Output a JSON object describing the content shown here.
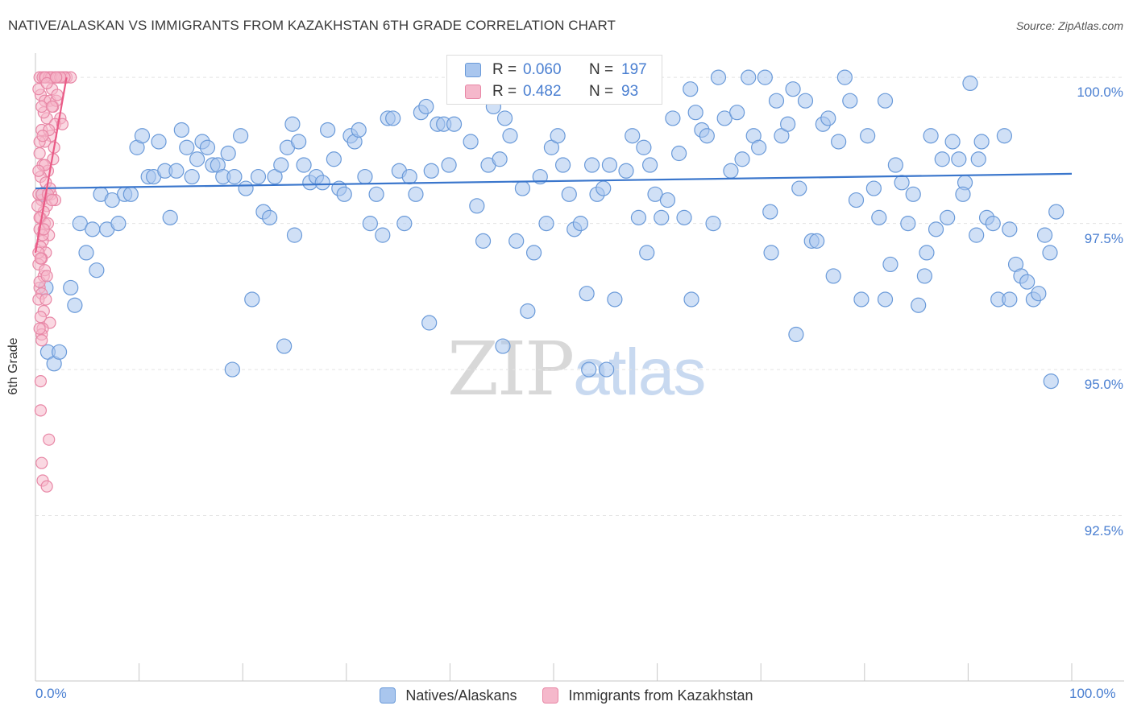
{
  "title": "NATIVE/ALASKAN VS IMMIGRANTS FROM KAZAKHSTAN 6TH GRADE CORRELATION CHART",
  "source": "Source: ZipAtlas.com",
  "watermark": {
    "zip": "ZIP",
    "atlas": "atlas"
  },
  "legend_box": {
    "rows": [
      {
        "r_label": "R =",
        "r_value": "0.060",
        "n_label": "N =",
        "n_value": "197"
      },
      {
        "r_label": "R =",
        "r_value": "0.482",
        "n_label": "N =",
        "n_value": "93"
      }
    ]
  },
  "colors": {
    "blue_fill": "#a9c6ee",
    "blue_stroke": "#6a9ad9",
    "blue_line": "#3a76cc",
    "blue_text": "#4a7fd1",
    "pink_fill": "#f5b8cb",
    "pink_stroke": "#e887a6",
    "pink_line": "#ea5a86",
    "grid": "#e4e4e4"
  },
  "chart_data": {
    "type": "scatter",
    "title": "NATIVE/ALASKAN VS IMMIGRANTS FROM KAZAKHSTAN 6TH GRADE CORRELATION CHART",
    "xlabel": "",
    "ylabel": "6th Grade",
    "x_tick_labels": [
      "0.0%",
      "100.0%"
    ],
    "y_tick_labels": [
      "100.0%",
      "97.5%",
      "95.0%",
      "92.5%"
    ],
    "y_ticks": [
      100.0,
      97.5,
      95.0,
      92.5
    ],
    "xlim": [
      0,
      100
    ],
    "ylim": [
      90.0,
      100.25
    ],
    "grid": true,
    "legend_position": "bottom-center",
    "series": [
      {
        "name": "Natives/Alaskans",
        "color": "#a9c6ee",
        "r": 0.06,
        "n": 197,
        "trend": {
          "x": [
            0,
            100
          ],
          "y": [
            98.1,
            98.35
          ]
        },
        "points": [
          [
            0.8,
            98.0
          ],
          [
            1.2,
            95.3
          ],
          [
            1.8,
            95.1
          ],
          [
            2.3,
            95.3
          ],
          [
            1.0,
            96.4
          ],
          [
            3.4,
            96.4
          ],
          [
            3.8,
            96.1
          ],
          [
            4.3,
            97.5
          ],
          [
            4.9,
            97.0
          ],
          [
            5.5,
            97.4
          ],
          [
            5.9,
            96.7
          ],
          [
            6.3,
            98.0
          ],
          [
            6.9,
            97.4
          ],
          [
            7.4,
            97.9
          ],
          [
            8.0,
            97.5
          ],
          [
            8.6,
            98.0
          ],
          [
            9.2,
            98.0
          ],
          [
            9.8,
            98.8
          ],
          [
            10.3,
            99.0
          ],
          [
            10.9,
            98.3
          ],
          [
            11.4,
            98.3
          ],
          [
            11.9,
            98.9
          ],
          [
            12.5,
            98.4
          ],
          [
            13.0,
            97.6
          ],
          [
            13.6,
            98.4
          ],
          [
            14.1,
            99.1
          ],
          [
            14.6,
            98.8
          ],
          [
            15.1,
            98.3
          ],
          [
            15.6,
            98.6
          ],
          [
            16.1,
            98.9
          ],
          [
            16.6,
            98.8
          ],
          [
            17.1,
            98.5
          ],
          [
            17.6,
            98.5
          ],
          [
            18.1,
            98.3
          ],
          [
            18.6,
            98.7
          ],
          [
            19.2,
            98.3
          ],
          [
            19.8,
            99.0
          ],
          [
            20.3,
            98.1
          ],
          [
            20.9,
            96.2
          ],
          [
            21.5,
            98.3
          ],
          [
            22.0,
            97.7
          ],
          [
            22.6,
            97.6
          ],
          [
            23.1,
            98.3
          ],
          [
            23.7,
            98.5
          ],
          [
            24.3,
            98.8
          ],
          [
            24.8,
            99.2
          ],
          [
            25.4,
            98.9
          ],
          [
            25.9,
            98.5
          ],
          [
            26.5,
            98.2
          ],
          [
            27.1,
            98.3
          ],
          [
            27.7,
            98.2
          ],
          [
            28.2,
            99.1
          ],
          [
            28.8,
            98.6
          ],
          [
            29.3,
            98.1
          ],
          [
            29.8,
            98.0
          ],
          [
            30.4,
            99.0
          ],
          [
            30.8,
            98.9
          ],
          [
            31.2,
            99.1
          ],
          [
            31.8,
            98.3
          ],
          [
            32.3,
            97.5
          ],
          [
            32.9,
            98.0
          ],
          [
            33.5,
            97.3
          ],
          [
            34.0,
            99.3
          ],
          [
            34.5,
            99.3
          ],
          [
            35.1,
            98.4
          ],
          [
            35.6,
            97.5
          ],
          [
            36.1,
            98.3
          ],
          [
            36.7,
            98.0
          ],
          [
            37.2,
            99.4
          ],
          [
            37.7,
            99.5
          ],
          [
            38.2,
            98.4
          ],
          [
            38.8,
            99.2
          ],
          [
            39.4,
            99.2
          ],
          [
            39.9,
            98.5
          ],
          [
            40.4,
            99.2
          ],
          [
            41.0,
            99.7
          ],
          [
            41.5,
            99.7
          ],
          [
            42.0,
            98.9
          ],
          [
            42.6,
            97.8
          ],
          [
            43.2,
            97.2
          ],
          [
            43.7,
            98.5
          ],
          [
            44.2,
            99.5
          ],
          [
            44.8,
            98.6
          ],
          [
            45.3,
            99.3
          ],
          [
            45.8,
            99.0
          ],
          [
            46.4,
            97.2
          ],
          [
            47.0,
            98.1
          ],
          [
            47.5,
            96.0
          ],
          [
            48.1,
            97.0
          ],
          [
            48.7,
            98.3
          ],
          [
            49.3,
            97.5
          ],
          [
            49.8,
            98.8
          ],
          [
            50.4,
            99.0
          ],
          [
            50.9,
            98.5
          ],
          [
            51.5,
            98.0
          ],
          [
            52.0,
            97.4
          ],
          [
            52.6,
            97.5
          ],
          [
            53.2,
            96.3
          ],
          [
            53.7,
            98.5
          ],
          [
            54.2,
            98.0
          ],
          [
            54.8,
            98.1
          ],
          [
            55.4,
            98.5
          ],
          [
            55.9,
            96.2
          ],
          [
            56.5,
            99.8
          ],
          [
            57.0,
            98.4
          ],
          [
            57.6,
            99.0
          ],
          [
            58.2,
            97.6
          ],
          [
            58.7,
            98.8
          ],
          [
            59.3,
            98.5
          ],
          [
            59.8,
            98.0
          ],
          [
            60.4,
            97.6
          ],
          [
            61.0,
            97.9
          ],
          [
            61.5,
            99.3
          ],
          [
            62.1,
            98.7
          ],
          [
            62.6,
            97.6
          ],
          [
            63.2,
            99.8
          ],
          [
            63.7,
            99.4
          ],
          [
            64.3,
            99.1
          ],
          [
            64.8,
            99.0
          ],
          [
            65.4,
            97.5
          ],
          [
            65.9,
            100.0
          ],
          [
            66.5,
            99.3
          ],
          [
            67.1,
            98.4
          ],
          [
            67.7,
            99.4
          ],
          [
            68.2,
            98.6
          ],
          [
            68.8,
            100.0
          ],
          [
            69.3,
            99.0
          ],
          [
            69.8,
            98.8
          ],
          [
            70.4,
            100.0
          ],
          [
            70.9,
            97.7
          ],
          [
            71.5,
            99.6
          ],
          [
            72.0,
            99.0
          ],
          [
            72.6,
            99.2
          ],
          [
            73.1,
            99.8
          ],
          [
            73.7,
            98.1
          ],
          [
            74.3,
            99.6
          ],
          [
            74.9,
            97.2
          ],
          [
            75.4,
            97.2
          ],
          [
            76.0,
            99.2
          ],
          [
            76.5,
            99.3
          ],
          [
            77.0,
            96.6
          ],
          [
            77.5,
            98.9
          ],
          [
            78.1,
            100.0
          ],
          [
            78.6,
            99.6
          ],
          [
            79.2,
            97.9
          ],
          [
            79.7,
            96.2
          ],
          [
            80.3,
            99.0
          ],
          [
            80.9,
            98.1
          ],
          [
            81.4,
            97.6
          ],
          [
            82.0,
            99.6
          ],
          [
            82.5,
            96.8
          ],
          [
            83.0,
            98.5
          ],
          [
            83.6,
            98.2
          ],
          [
            84.2,
            97.5
          ],
          [
            84.7,
            98.0
          ],
          [
            85.2,
            96.1
          ],
          [
            85.8,
            96.6
          ],
          [
            86.4,
            99.0
          ],
          [
            86.9,
            97.4
          ],
          [
            87.5,
            98.6
          ],
          [
            88.0,
            97.6
          ],
          [
            88.5,
            98.9
          ],
          [
            89.1,
            98.6
          ],
          [
            89.7,
            98.2
          ],
          [
            90.2,
            99.9
          ],
          [
            90.8,
            97.3
          ],
          [
            91.3,
            98.9
          ],
          [
            91.8,
            97.6
          ],
          [
            92.4,
            97.5
          ],
          [
            92.9,
            96.2
          ],
          [
            93.5,
            99.0
          ],
          [
            94.0,
            97.4
          ],
          [
            94.6,
            96.8
          ],
          [
            95.1,
            96.6
          ],
          [
            95.7,
            96.5
          ],
          [
            96.3,
            96.2
          ],
          [
            96.8,
            96.3
          ],
          [
            97.4,
            97.3
          ],
          [
            97.9,
            97.0
          ],
          [
            98.5,
            97.7
          ],
          [
            98.0,
            94.8
          ],
          [
            38.0,
            95.8
          ],
          [
            45.1,
            95.4
          ],
          [
            53.4,
            95.0
          ],
          [
            73.4,
            95.6
          ],
          [
            55.1,
            95.0
          ],
          [
            82.0,
            96.2
          ],
          [
            94.0,
            96.2
          ],
          [
            63.3,
            96.2
          ],
          [
            19.0,
            95.0
          ],
          [
            24.0,
            95.4
          ],
          [
            59.0,
            97.0
          ],
          [
            71.0,
            97.0
          ],
          [
            86.0,
            97.0
          ],
          [
            91.0,
            98.6
          ],
          [
            89.5,
            98.0
          ],
          [
            25.0,
            97.3
          ]
        ]
      },
      {
        "name": "Immigrants from Kazakhstan",
        "color": "#f5b8cb",
        "r": 0.482,
        "n": 93,
        "trend": {
          "x": [
            0,
            3.0
          ],
          "y": [
            97.0,
            100.0
          ]
        },
        "points": [
          [
            0.4,
            100.0
          ],
          [
            0.7,
            100.0
          ],
          [
            1.0,
            100.0
          ],
          [
            1.3,
            100.0
          ],
          [
            1.6,
            100.0
          ],
          [
            1.9,
            100.0
          ],
          [
            2.2,
            100.0
          ],
          [
            2.6,
            100.0
          ],
          [
            3.0,
            100.0
          ],
          [
            3.4,
            100.0
          ],
          [
            0.5,
            99.7
          ],
          [
            0.9,
            99.6
          ],
          [
            1.4,
            99.6
          ],
          [
            1.7,
            99.5
          ],
          [
            1.1,
            99.3
          ],
          [
            2.4,
            99.3
          ],
          [
            0.6,
            99.1
          ],
          [
            1.5,
            99.0
          ],
          [
            0.9,
            98.9
          ],
          [
            1.8,
            98.8
          ],
          [
            0.4,
            98.7
          ],
          [
            0.7,
            98.5
          ],
          [
            1.2,
            98.4
          ],
          [
            0.5,
            98.3
          ],
          [
            1.0,
            98.2
          ],
          [
            1.5,
            98.0
          ],
          [
            0.6,
            97.9
          ],
          [
            1.1,
            97.8
          ],
          [
            0.5,
            97.6
          ],
          [
            0.9,
            97.5
          ],
          [
            0.4,
            97.4
          ],
          [
            1.3,
            97.3
          ],
          [
            0.7,
            97.2
          ],
          [
            0.5,
            97.1
          ],
          [
            1.0,
            97.0
          ],
          [
            0.6,
            96.9
          ],
          [
            0.3,
            96.8
          ],
          [
            0.8,
            96.6
          ],
          [
            0.4,
            96.4
          ],
          [
            0.6,
            96.3
          ],
          [
            0.3,
            96.2
          ],
          [
            0.8,
            96.0
          ],
          [
            0.5,
            95.9
          ],
          [
            1.4,
            95.8
          ],
          [
            0.7,
            95.7
          ],
          [
            0.6,
            95.6
          ],
          [
            0.5,
            94.8
          ],
          [
            0.5,
            94.3
          ],
          [
            1.3,
            93.8
          ],
          [
            0.6,
            93.4
          ],
          [
            0.7,
            93.1
          ],
          [
            1.1,
            93.0
          ],
          [
            0.3,
            99.8
          ],
          [
            1.6,
            99.8
          ],
          [
            2.0,
            99.6
          ],
          [
            0.8,
            99.4
          ],
          [
            1.9,
            99.2
          ],
          [
            1.3,
            99.1
          ],
          [
            0.4,
            98.9
          ],
          [
            1.7,
            98.6
          ],
          [
            0.9,
            98.5
          ],
          [
            0.3,
            98.4
          ],
          [
            1.4,
            98.1
          ],
          [
            1.9,
            97.9
          ],
          [
            0.8,
            97.7
          ],
          [
            0.4,
            97.6
          ],
          [
            1.2,
            97.5
          ],
          [
            0.7,
            97.3
          ],
          [
            0.3,
            97.0
          ],
          [
            0.9,
            96.7
          ],
          [
            0.4,
            96.5
          ],
          [
            1.0,
            96.2
          ],
          [
            0.6,
            95.5
          ],
          [
            2.6,
            99.2
          ],
          [
            2.1,
            99.7
          ],
          [
            1.5,
            100.0
          ],
          [
            0.9,
            100.0
          ],
          [
            2.8,
            100.0
          ],
          [
            1.1,
            99.9
          ],
          [
            0.6,
            99.5
          ],
          [
            0.3,
            98.0
          ],
          [
            0.6,
            98.0
          ],
          [
            1.2,
            98.0
          ],
          [
            1.6,
            97.9
          ],
          [
            0.8,
            97.4
          ],
          [
            0.5,
            96.9
          ],
          [
            1.1,
            96.6
          ],
          [
            0.4,
            95.7
          ],
          [
            0.7,
            99.0
          ],
          [
            1.6,
            99.5
          ],
          [
            2.4,
            100.0
          ],
          [
            2.0,
            100.0
          ],
          [
            0.2,
            97.8
          ]
        ]
      }
    ]
  },
  "bottom_legend": [
    {
      "label": "Natives/Alaskans"
    },
    {
      "label": "Immigrants from Kazakhstan"
    }
  ]
}
